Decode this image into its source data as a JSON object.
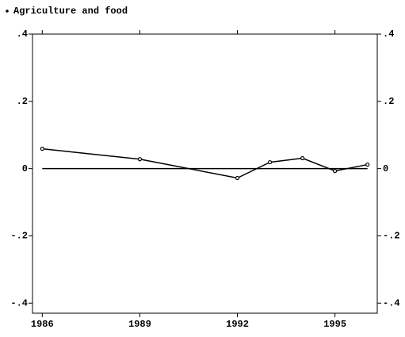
{
  "chart_data": {
    "type": "line",
    "x": [
      1986,
      1989,
      1992,
      1993,
      1994,
      1995,
      1996
    ],
    "series": [
      {
        "name": "Agriculture and food",
        "color": "#000000",
        "values": [
          0.059,
          0.028,
          -0.028,
          0.019,
          0.031,
          -0.007,
          0.012
        ]
      }
    ],
    "xlim": [
      1985.7,
      1996.3
    ],
    "xticks": [
      1986,
      1989,
      1992,
      1995
    ],
    "ylim": [
      -0.43,
      0.4
    ],
    "yticks": [
      {
        "value": -0.4,
        "label": "-.4"
      },
      {
        "value": -0.2,
        "label": "-.2"
      },
      0,
      {
        "value": 0.2,
        "label": ".2"
      },
      {
        "value": 0.4,
        "label": ".4"
      }
    ],
    "yline": 0,
    "grid": false,
    "legend": "top-left"
  }
}
